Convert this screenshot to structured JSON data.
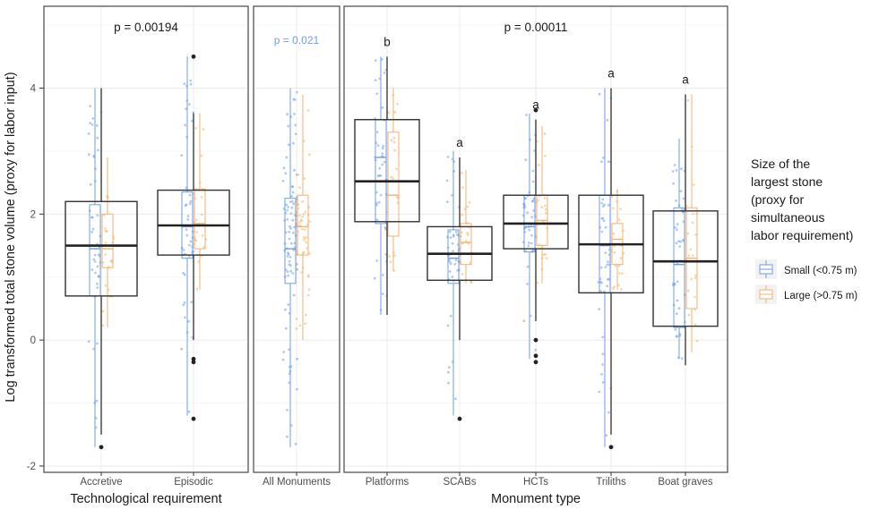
{
  "chart_data": {
    "type": "boxplot",
    "ylabel": "Log transformed total stone volume (proxy for labor input)",
    "ylim": [
      -2.1,
      5.3
    ],
    "yticks": [
      "-2",
      "0",
      "2",
      "4"
    ],
    "grid": true,
    "legend": {
      "title": [
        "Size of the",
        "largest stone",
        "(proxy for",
        "simultaneous",
        "labor requirement)"
      ],
      "placement": "right",
      "entries": [
        {
          "key": "small",
          "label": "Small (<0.75 m)",
          "color": "#6d9eeb"
        },
        {
          "key": "large",
          "label": "Large (>0.75 m)",
          "color": "#f6b26b"
        }
      ]
    },
    "panels": [
      {
        "xlabel": "Technological requirement",
        "annotations": [
          {
            "text": "p = 0.00194",
            "y": 4.9
          }
        ],
        "categories": [
          {
            "label": "Accretive",
            "letter": "",
            "overall": {
              "q1": 0.7,
              "median": 1.5,
              "q3": 2.2,
              "lo": -1.5,
              "hi": 4.0,
              "outliers": [
                -1.7
              ]
            },
            "small": {
              "q1": 0.7,
              "median": 1.45,
              "q3": 2.15,
              "lo": -1.7,
              "hi": 4.0
            },
            "large": {
              "q1": 1.15,
              "median": 1.45,
              "q3": 2.0,
              "lo": 0.2,
              "hi": 2.9
            }
          },
          {
            "label": "Episodic",
            "letter": "",
            "overall": {
              "q1": 1.35,
              "median": 1.82,
              "q3": 2.38,
              "lo": 0.0,
              "hi": 3.6,
              "outliers": [
                4.5,
                -0.3,
                -0.35,
                -1.25
              ]
            },
            "small": {
              "q1": 1.3,
              "median": 1.8,
              "q3": 2.35,
              "lo": -1.2,
              "hi": 4.5
            },
            "large": {
              "q1": 1.45,
              "median": 1.85,
              "q3": 2.4,
              "lo": 0.8,
              "hi": 3.6
            }
          }
        ]
      },
      {
        "xlabel": "",
        "annotations": [
          {
            "text": "p = 0.021",
            "y": 4.7,
            "color": "#6d9eeb"
          }
        ],
        "categories": [
          {
            "label": "All Monuments",
            "letter": "",
            "small": {
              "q1": 0.9,
              "median": 1.45,
              "q3": 2.25,
              "lo": -1.7,
              "hi": 4.0
            },
            "large": {
              "q1": 1.35,
              "median": 1.8,
              "q3": 2.3,
              "lo": 0.0,
              "hi": 3.9
            }
          }
        ]
      },
      {
        "xlabel": "Monument type",
        "annotations": [
          {
            "text": "p = 0.00011",
            "y": 4.9
          }
        ],
        "categories": [
          {
            "label": "Platforms",
            "letter": "b",
            "overall": {
              "q1": 1.88,
              "median": 2.52,
              "q3": 3.5,
              "lo": 0.4,
              "hi": 4.5,
              "outliers": []
            },
            "small": {
              "q1": 1.85,
              "median": 2.9,
              "q3": 3.5,
              "lo": 0.4,
              "hi": 4.5
            },
            "large": {
              "q1": 1.65,
              "median": 2.3,
              "q3": 3.3,
              "lo": 1.1,
              "hi": 4.0
            }
          },
          {
            "label": "SCABs",
            "letter": "a",
            "overall": {
              "q1": 0.95,
              "median": 1.37,
              "q3": 1.8,
              "lo": 0.0,
              "hi": 2.9,
              "outliers": [
                -1.25
              ]
            },
            "small": {
              "q1": 0.9,
              "median": 1.3,
              "q3": 1.75,
              "lo": -1.2,
              "hi": 3.0
            },
            "large": {
              "q1": 1.2,
              "median": 1.55,
              "q3": 1.85,
              "lo": 0.9,
              "hi": 2.7
            }
          },
          {
            "label": "HCTs",
            "letter": "a",
            "overall": {
              "q1": 1.45,
              "median": 1.85,
              "q3": 2.3,
              "lo": 0.3,
              "hi": 3.5,
              "outliers": [
                3.65,
                0.0,
                -0.25,
                -0.35
              ]
            },
            "small": {
              "q1": 1.4,
              "median": 1.8,
              "q3": 2.3,
              "lo": -0.3,
              "hi": 3.6
            },
            "large": {
              "q1": 1.5,
              "median": 1.9,
              "q3": 2.3,
              "lo": 0.9,
              "hi": 3.4
            }
          },
          {
            "label": "Triliths",
            "letter": "a",
            "overall": {
              "q1": 0.75,
              "median": 1.52,
              "q3": 2.3,
              "lo": -1.5,
              "hi": 4.0,
              "outliers": [
                -1.7
              ]
            },
            "small": {
              "q1": 0.75,
              "median": 1.5,
              "q3": 2.3,
              "lo": -1.7,
              "hi": 4.0
            },
            "large": {
              "q1": 1.2,
              "median": 1.6,
              "q3": 1.85,
              "lo": 0.8,
              "hi": 2.4
            }
          },
          {
            "label": "Boat graves",
            "letter": "a",
            "overall": {
              "q1": 0.22,
              "median": 1.25,
              "q3": 2.05,
              "lo": -0.4,
              "hi": 3.9,
              "outliers": []
            },
            "small": {
              "q1": 0.2,
              "median": 1.2,
              "q3": 2.1,
              "lo": -0.3,
              "hi": 3.2
            },
            "large": {
              "q1": 0.5,
              "median": 1.3,
              "q3": 2.1,
              "lo": -0.2,
              "hi": 3.9
            }
          }
        ]
      }
    ]
  }
}
